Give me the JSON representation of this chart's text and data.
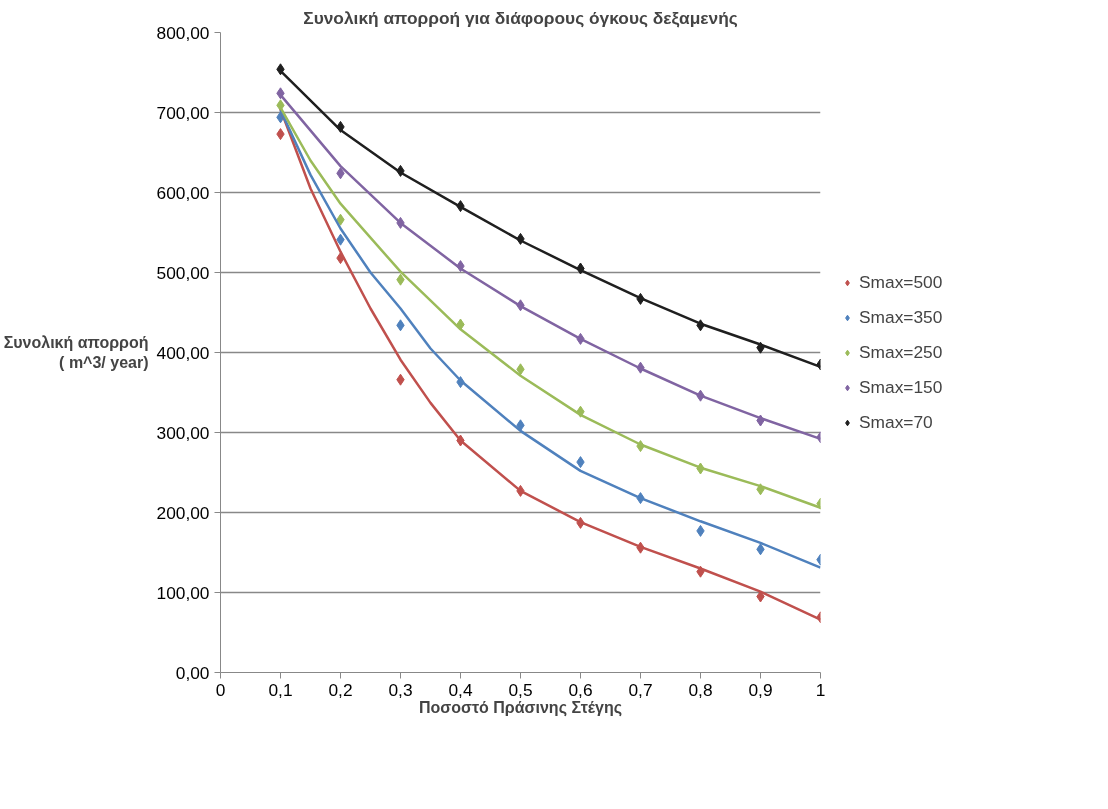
{
  "chart_data": {
    "type": "scatter",
    "title": "Συνολική απορροή για διάφορους όγκους δεξαμενής",
    "xlabel": "Ποσοστό Πράσινης Στέγης",
    "ylabel": "Συνολική απορροή\n( m^3/ year)",
    "x": [
      0.1,
      0.2,
      0.3,
      0.4,
      0.5,
      0.6,
      0.7,
      0.8,
      0.9,
      1.0
    ],
    "xlim": [
      0,
      1
    ],
    "xticks": [
      0,
      {
        "value": 0.1,
        "label": "0,1"
      },
      {
        "value": 0.2,
        "label": "0,2"
      },
      {
        "value": 0.3,
        "label": "0,3"
      },
      {
        "value": 0.4,
        "label": "0,4"
      },
      {
        "value": 0.5,
        "label": "0,5"
      },
      {
        "value": 0.6,
        "label": "0,6"
      },
      {
        "value": 0.7,
        "label": "0,7"
      },
      {
        "value": 0.8,
        "label": "0,8"
      },
      {
        "value": 0.9,
        "label": "0,9"
      },
      1
    ],
    "ylim": [
      0,
      800
    ],
    "yticks": [
      {
        "value": 0,
        "label": "0,00"
      },
      {
        "value": 100,
        "label": "100,00"
      },
      {
        "value": 200,
        "label": "200,00"
      },
      {
        "value": 300,
        "label": "300,00"
      },
      {
        "value": 400,
        "label": "400,00"
      },
      {
        "value": 500,
        "label": "500,00"
      },
      {
        "value": 600,
        "label": "600,00"
      },
      {
        "value": 700,
        "label": "700,00"
      },
      {
        "value": 800,
        "label": "800,00"
      }
    ],
    "grid": "y",
    "legend": "right",
    "marker": "diamond",
    "series": [
      {
        "name": "Smax=500",
        "color": "#c0504d",
        "values": [
          673,
          518,
          366,
          290,
          227,
          187,
          156,
          126,
          95,
          69
        ]
      },
      {
        "name": "Smax=350",
        "color": "#4f81bd",
        "values": [
          694,
          541,
          434,
          363,
          309,
          263,
          218,
          177,
          154,
          141
        ]
      },
      {
        "name": "Smax=250",
        "color": "#9bbb59",
        "values": [
          709,
          566,
          491,
          435,
          379,
          326,
          283,
          255,
          229,
          211
        ]
      },
      {
        "name": "Smax=150",
        "color": "#8064a2",
        "values": [
          724,
          624,
          562,
          508,
          459,
          417,
          381,
          346,
          315,
          294
        ]
      },
      {
        "name": "Smax=70",
        "color": "#1f1f1f",
        "values": [
          754,
          682,
          627,
          583,
          542,
          505,
          467,
          434,
          406,
          385
        ]
      },
      {
        "type": "line",
        "marker": "none",
        "color": "#c0504d",
        "x": [
          0.1,
          0.15,
          0.2,
          0.25,
          0.3,
          0.35,
          0.4,
          0.5,
          0.6,
          0.7,
          0.8,
          0.9,
          1.0
        ],
        "values": [
          704,
          605,
          526,
          455,
          391,
          337,
          290,
          227,
          188,
          157,
          130,
          101,
          66
        ]
      },
      {
        "type": "line",
        "marker": "none",
        "color": "#4f81bd",
        "x": [
          0.1,
          0.15,
          0.2,
          0.25,
          0.3,
          0.35,
          0.4,
          0.5,
          0.6,
          0.7,
          0.8,
          0.9,
          1.0
        ],
        "values": [
          703,
          622,
          555,
          500,
          455,
          405,
          365,
          302,
          252,
          218,
          189,
          162,
          131
        ]
      },
      {
        "type": "line",
        "marker": "none",
        "color": "#9bbb59",
        "x": [
          0.1,
          0.15,
          0.2,
          0.3,
          0.4,
          0.5,
          0.6,
          0.7,
          0.8,
          0.9,
          1.0
        ],
        "values": [
          706,
          640,
          586,
          501,
          429,
          371,
          322,
          285,
          256,
          233,
          206
        ]
      },
      {
        "type": "line",
        "marker": "none",
        "color": "#8064a2",
        "x": [
          0.1,
          0.2,
          0.3,
          0.4,
          0.5,
          0.6,
          0.7,
          0.8,
          0.9,
          1.0
        ],
        "values": [
          722,
          633,
          562,
          505,
          458,
          417,
          380,
          346,
          318,
          292
        ]
      },
      {
        "type": "line",
        "marker": "none",
        "color": "#1f1f1f",
        "x": [
          0.1,
          0.2,
          0.3,
          0.4,
          0.5,
          0.6,
          0.7,
          0.8,
          0.9,
          1.0
        ],
        "values": [
          752,
          678,
          625,
          582,
          540,
          503,
          468,
          436,
          410,
          382
        ]
      }
    ]
  }
}
